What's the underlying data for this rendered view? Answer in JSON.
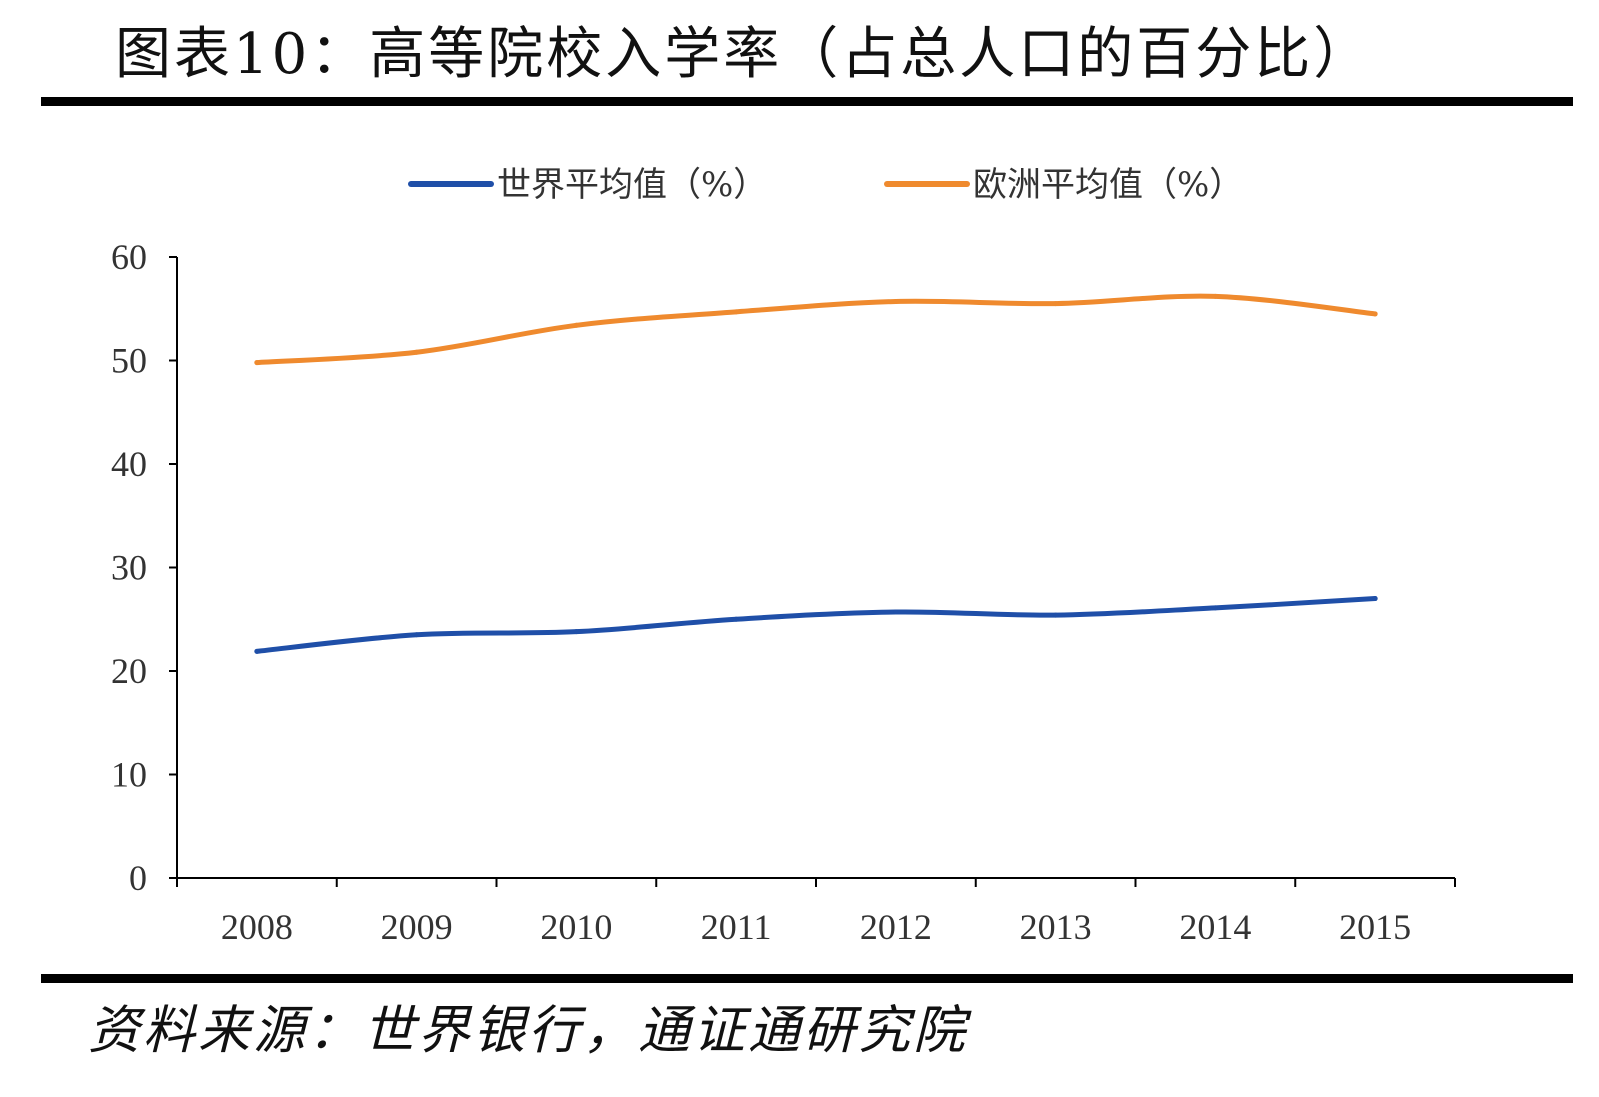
{
  "title": "图表10：高等院校入学率（占总人口的百分比）",
  "source": "资料来源：世界银行，通证通研究院",
  "colors": {
    "series_world": "#1f4fa8",
    "series_europe": "#ef8a2e",
    "axis": "#000000",
    "rule": "#000000"
  },
  "chart_data": {
    "type": "line",
    "title": "",
    "xlabel": "",
    "ylabel": "",
    "categories": [
      "2008",
      "2009",
      "2010",
      "2011",
      "2012",
      "2013",
      "2014",
      "2015"
    ],
    "ylim": [
      0,
      60
    ],
    "yticks": [
      "0",
      "10",
      "20",
      "30",
      "40",
      "50",
      "60"
    ],
    "grid": false,
    "legend": "top",
    "series": [
      {
        "name": "世界平均值（%）",
        "color": "#1f4fa8",
        "values": [
          21.9,
          23.5,
          23.8,
          25.0,
          25.7,
          25.4,
          26.1,
          27.0
        ]
      },
      {
        "name": "欧洲平均值（%）",
        "color": "#ef8a2e",
        "values": [
          49.8,
          50.8,
          53.4,
          54.7,
          55.7,
          55.5,
          56.2,
          54.5
        ]
      }
    ]
  }
}
